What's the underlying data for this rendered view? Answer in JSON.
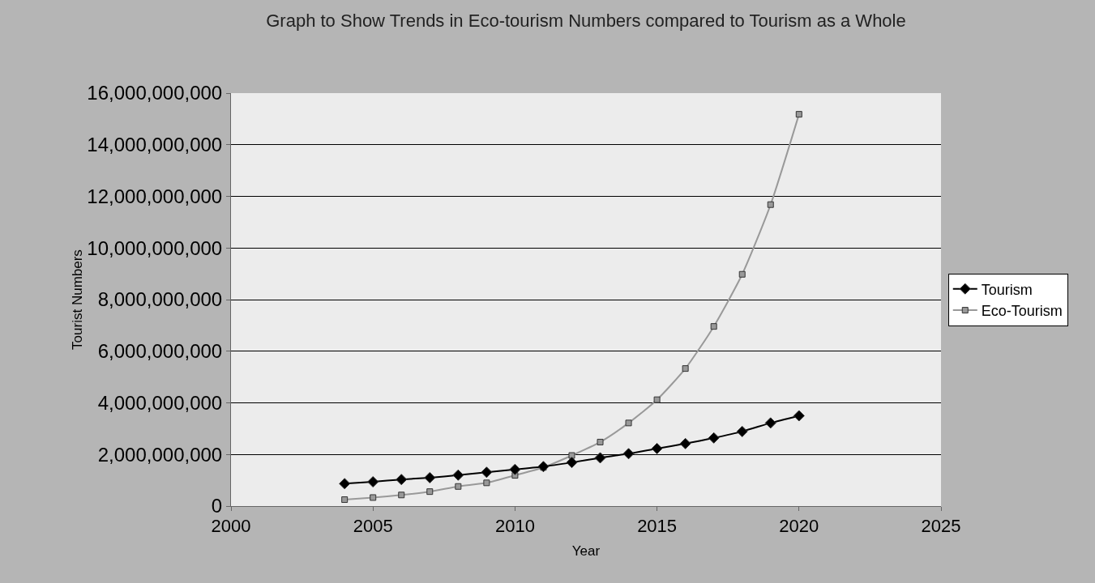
{
  "chart_data": {
    "type": "line",
    "title": "Graph to Show Trends in Eco-tourism Numbers compared to Tourism as a Whole",
    "xlabel": "Year",
    "ylabel": "Tourist Numbers",
    "x": [
      2004,
      2005,
      2006,
      2007,
      2008,
      2009,
      2010,
      2011,
      2012,
      2013,
      2014,
      2015,
      2016,
      2017,
      2018,
      2019,
      2020
    ],
    "series": [
      {
        "name": "Tourism",
        "color": "#000000",
        "marker": "diamond",
        "values": [
          870000000,
          940000000,
          1030000000,
          1100000000,
          1200000000,
          1310000000,
          1420000000,
          1530000000,
          1690000000,
          1870000000,
          2030000000,
          2230000000,
          2420000000,
          2640000000,
          2890000000,
          3220000000,
          3500000000
        ]
      },
      {
        "name": "Eco-Tourism",
        "color": "#999999",
        "marker": "square",
        "values": [
          250000000,
          330000000,
          430000000,
          560000000,
          760000000,
          900000000,
          1190000000,
          1500000000,
          1960000000,
          2480000000,
          3220000000,
          4120000000,
          5330000000,
          6960000000,
          8980000000,
          11680000000,
          15180000000
        ]
      }
    ],
    "xlim": [
      2000,
      2025
    ],
    "xticks": [
      2000,
      2005,
      2010,
      2015,
      2020,
      2025
    ],
    "ylim": [
      0,
      16000000000
    ],
    "yticks": [
      {
        "value": 0,
        "label": "0"
      },
      {
        "value": 2000000000,
        "label": "2,000,000,000"
      },
      {
        "value": 4000000000,
        "label": "4,000,000,000"
      },
      {
        "value": 6000000000,
        "label": "6,000,000,000"
      },
      {
        "value": 8000000000,
        "label": "8,000,000,000"
      },
      {
        "value": 10000000000,
        "label": "10,000,000,000"
      },
      {
        "value": 12000000000,
        "label": "12,000,000,000"
      },
      {
        "value": 14000000000,
        "label": "14,000,000,000"
      },
      {
        "value": 16000000000,
        "label": "16,000,000,000"
      }
    ],
    "grid": "y",
    "legend": "right",
    "line_style": "solid"
  }
}
